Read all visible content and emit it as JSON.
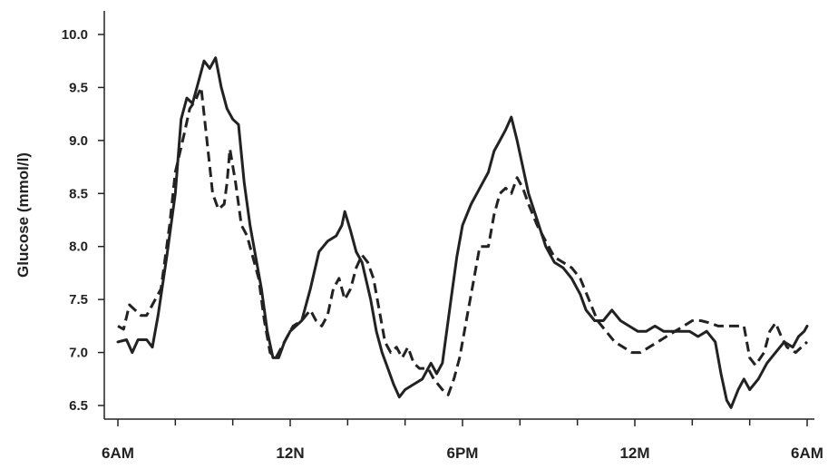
{
  "chart_data": {
    "type": "line",
    "title": "",
    "xlabel": "",
    "ylabel": "Glucose (mmol/l)",
    "x_unit": "hours since 6AM",
    "xlim": [
      0,
      24
    ],
    "ylim": [
      6.5,
      10.0
    ],
    "yticks": [
      "6.5",
      "7.0",
      "7.5",
      "8.0",
      "8.5",
      "9.0",
      "9.5",
      "10.0"
    ],
    "xticks": [
      {
        "x": 0,
        "label": "6AM"
      },
      {
        "x": 6,
        "label": "12N"
      },
      {
        "x": 12,
        "label": "6PM"
      },
      {
        "x": 18,
        "label": "12M"
      },
      {
        "x": 24,
        "label": "6AM"
      }
    ],
    "minor_xticks": [
      2,
      4,
      8,
      10,
      14,
      16,
      20,
      22
    ],
    "grid": false,
    "series": [
      {
        "style": "solid",
        "color": "#222222",
        "points": [
          [
            0.0,
            7.1
          ],
          [
            0.3,
            7.12
          ],
          [
            0.5,
            7.0
          ],
          [
            0.7,
            7.12
          ],
          [
            1.0,
            7.12
          ],
          [
            1.2,
            7.05
          ],
          [
            1.4,
            7.35
          ],
          [
            1.7,
            7.9
          ],
          [
            2.0,
            8.5
          ],
          [
            2.2,
            9.2
          ],
          [
            2.4,
            9.4
          ],
          [
            2.6,
            9.35
          ],
          [
            2.8,
            9.55
          ],
          [
            3.0,
            9.75
          ],
          [
            3.2,
            9.68
          ],
          [
            3.4,
            9.78
          ],
          [
            3.6,
            9.5
          ],
          [
            3.8,
            9.3
          ],
          [
            4.0,
            9.2
          ],
          [
            4.2,
            9.15
          ],
          [
            4.4,
            8.6
          ],
          [
            4.6,
            8.2
          ],
          [
            4.8,
            7.9
          ],
          [
            5.0,
            7.6
          ],
          [
            5.2,
            7.2
          ],
          [
            5.4,
            6.95
          ],
          [
            5.6,
            6.95
          ],
          [
            5.8,
            7.1
          ],
          [
            6.0,
            7.2
          ],
          [
            6.2,
            7.25
          ],
          [
            6.4,
            7.3
          ],
          [
            6.7,
            7.6
          ],
          [
            7.0,
            7.95
          ],
          [
            7.3,
            8.05
          ],
          [
            7.6,
            8.1
          ],
          [
            7.8,
            8.2
          ],
          [
            7.9,
            8.33
          ],
          [
            8.1,
            8.15
          ],
          [
            8.3,
            7.95
          ],
          [
            8.5,
            7.85
          ],
          [
            8.8,
            7.5
          ],
          [
            9.0,
            7.2
          ],
          [
            9.2,
            7.0
          ],
          [
            9.4,
            6.85
          ],
          [
            9.6,
            6.7
          ],
          [
            9.8,
            6.58
          ],
          [
            10.0,
            6.65
          ],
          [
            10.3,
            6.7
          ],
          [
            10.6,
            6.75
          ],
          [
            10.9,
            6.9
          ],
          [
            11.1,
            6.8
          ],
          [
            11.3,
            6.9
          ],
          [
            11.6,
            7.5
          ],
          [
            11.8,
            7.9
          ],
          [
            12.0,
            8.2
          ],
          [
            12.3,
            8.4
          ],
          [
            12.6,
            8.55
          ],
          [
            12.9,
            8.7
          ],
          [
            13.1,
            8.9
          ],
          [
            13.3,
            9.0
          ],
          [
            13.5,
            9.1
          ],
          [
            13.7,
            9.22
          ],
          [
            13.9,
            9.0
          ],
          [
            14.1,
            8.75
          ],
          [
            14.3,
            8.5
          ],
          [
            14.6,
            8.25
          ],
          [
            14.9,
            8.0
          ],
          [
            15.2,
            7.85
          ],
          [
            15.5,
            7.8
          ],
          [
            15.8,
            7.7
          ],
          [
            16.1,
            7.55
          ],
          [
            16.3,
            7.4
          ],
          [
            16.6,
            7.3
          ],
          [
            16.9,
            7.3
          ],
          [
            17.2,
            7.4
          ],
          [
            17.5,
            7.3
          ],
          [
            17.8,
            7.25
          ],
          [
            18.1,
            7.2
          ],
          [
            18.4,
            7.2
          ],
          [
            18.7,
            7.25
          ],
          [
            19.0,
            7.2
          ],
          [
            19.3,
            7.2
          ],
          [
            19.6,
            7.2
          ],
          [
            19.9,
            7.2
          ],
          [
            20.2,
            7.15
          ],
          [
            20.5,
            7.2
          ],
          [
            20.8,
            7.1
          ],
          [
            21.0,
            6.8
          ],
          [
            21.2,
            6.55
          ],
          [
            21.35,
            6.48
          ],
          [
            21.6,
            6.65
          ],
          [
            21.8,
            6.75
          ],
          [
            22.0,
            6.65
          ],
          [
            22.3,
            6.75
          ],
          [
            22.6,
            6.9
          ],
          [
            22.9,
            7.0
          ],
          [
            23.2,
            7.1
          ],
          [
            23.5,
            7.05
          ],
          [
            23.7,
            7.15
          ],
          [
            23.9,
            7.2
          ],
          [
            24.0,
            7.25
          ]
        ]
      },
      {
        "style": "dashed",
        "color": "#222222",
        "points": [
          [
            0.0,
            7.25
          ],
          [
            0.2,
            7.22
          ],
          [
            0.4,
            7.45
          ],
          [
            0.6,
            7.4
          ],
          [
            0.8,
            7.35
          ],
          [
            1.0,
            7.35
          ],
          [
            1.2,
            7.45
          ],
          [
            1.5,
            7.6
          ],
          [
            1.8,
            8.2
          ],
          [
            2.0,
            8.7
          ],
          [
            2.3,
            9.05
          ],
          [
            2.5,
            9.3
          ],
          [
            2.7,
            9.38
          ],
          [
            2.9,
            9.5
          ],
          [
            3.1,
            9.0
          ],
          [
            3.3,
            8.5
          ],
          [
            3.5,
            8.35
          ],
          [
            3.7,
            8.4
          ],
          [
            3.8,
            8.6
          ],
          [
            3.9,
            8.92
          ],
          [
            4.1,
            8.6
          ],
          [
            4.3,
            8.2
          ],
          [
            4.5,
            8.1
          ],
          [
            4.7,
            7.9
          ],
          [
            4.9,
            7.7
          ],
          [
            5.1,
            7.3
          ],
          [
            5.3,
            7.0
          ],
          [
            5.5,
            6.95
          ],
          [
            5.7,
            7.05
          ],
          [
            5.9,
            7.15
          ],
          [
            6.1,
            7.25
          ],
          [
            6.4,
            7.3
          ],
          [
            6.7,
            7.4
          ],
          [
            6.9,
            7.3
          ],
          [
            7.1,
            7.25
          ],
          [
            7.3,
            7.35
          ],
          [
            7.5,
            7.6
          ],
          [
            7.7,
            7.7
          ],
          [
            7.9,
            7.5
          ],
          [
            8.1,
            7.6
          ],
          [
            8.3,
            7.8
          ],
          [
            8.5,
            7.92
          ],
          [
            8.7,
            7.85
          ],
          [
            8.9,
            7.7
          ],
          [
            9.1,
            7.4
          ],
          [
            9.3,
            7.1
          ],
          [
            9.5,
            7.0
          ],
          [
            9.7,
            7.05
          ],
          [
            9.9,
            6.95
          ],
          [
            10.1,
            7.05
          ],
          [
            10.3,
            6.9
          ],
          [
            10.5,
            6.85
          ],
          [
            10.8,
            6.85
          ],
          [
            11.0,
            6.75
          ],
          [
            11.3,
            6.65
          ],
          [
            11.5,
            6.6
          ],
          [
            11.7,
            6.75
          ],
          [
            11.9,
            6.95
          ],
          [
            12.2,
            7.4
          ],
          [
            12.4,
            7.7
          ],
          [
            12.6,
            8.0
          ],
          [
            12.9,
            8.0
          ],
          [
            13.1,
            8.3
          ],
          [
            13.3,
            8.5
          ],
          [
            13.5,
            8.55
          ],
          [
            13.7,
            8.5
          ],
          [
            13.9,
            8.65
          ],
          [
            14.1,
            8.55
          ],
          [
            14.3,
            8.4
          ],
          [
            14.6,
            8.2
          ],
          [
            14.9,
            8.05
          ],
          [
            15.2,
            7.9
          ],
          [
            15.5,
            7.85
          ],
          [
            15.8,
            7.8
          ],
          [
            16.1,
            7.7
          ],
          [
            16.4,
            7.5
          ],
          [
            16.7,
            7.3
          ],
          [
            17.0,
            7.2
          ],
          [
            17.3,
            7.1
          ],
          [
            17.6,
            7.05
          ],
          [
            17.9,
            7.0
          ],
          [
            18.2,
            7.0
          ],
          [
            18.5,
            7.05
          ],
          [
            18.8,
            7.1
          ],
          [
            19.1,
            7.15
          ],
          [
            19.4,
            7.2
          ],
          [
            19.7,
            7.25
          ],
          [
            20.0,
            7.3
          ],
          [
            20.3,
            7.3
          ],
          [
            20.6,
            7.28
          ],
          [
            20.9,
            7.25
          ],
          [
            21.2,
            7.25
          ],
          [
            21.5,
            7.25
          ],
          [
            21.8,
            7.25
          ],
          [
            22.0,
            6.95
          ],
          [
            22.2,
            6.88
          ],
          [
            22.5,
            7.0
          ],
          [
            22.7,
            7.2
          ],
          [
            22.9,
            7.28
          ],
          [
            23.1,
            7.15
          ],
          [
            23.3,
            7.05
          ],
          [
            23.6,
            7.0
          ],
          [
            23.8,
            7.05
          ],
          [
            24.0,
            7.1
          ]
        ]
      }
    ]
  }
}
